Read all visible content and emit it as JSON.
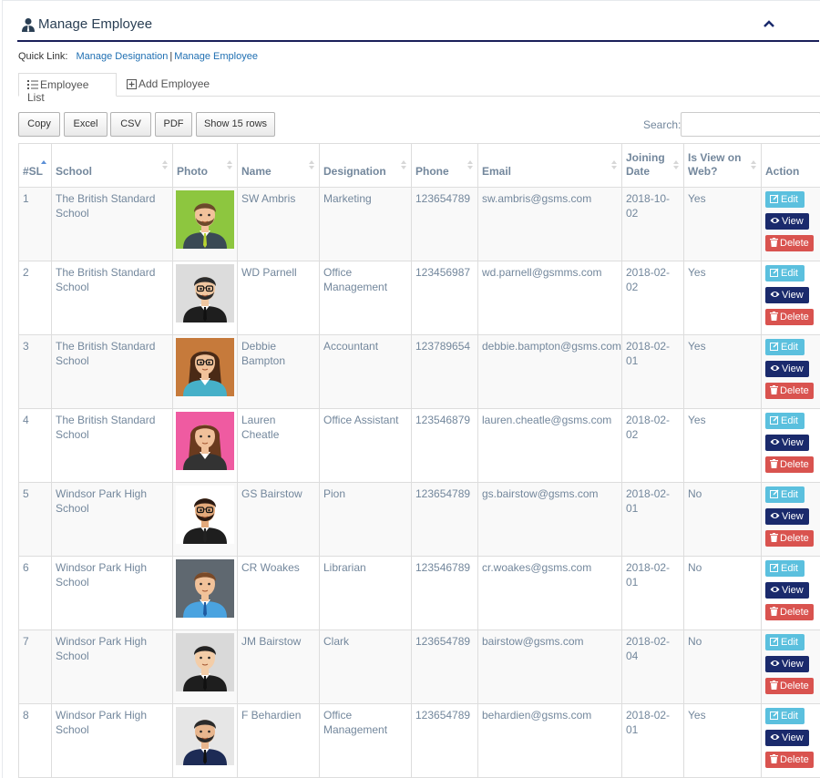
{
  "header": {
    "title": "Manage Employee"
  },
  "quick_links": {
    "label": "Quick Link:",
    "links": [
      "Manage Designation",
      "Manage Employee"
    ],
    "separator": "|"
  },
  "tabs": [
    {
      "label": "Employee List",
      "icon": "list-icon",
      "active": true
    },
    {
      "label": "Add Employee",
      "icon": "plus-square-icon",
      "active": false
    }
  ],
  "export_buttons": [
    "Copy",
    "Excel",
    "CSV",
    "PDF",
    "Show 15 rows"
  ],
  "search": {
    "label": "Search:",
    "value": "",
    "placeholder": ""
  },
  "table": {
    "columns": [
      "#SL",
      "School",
      "Photo",
      "Name",
      "Designation",
      "Phone",
      "Email",
      "Joining Date",
      "Is View on Web?",
      "Action"
    ],
    "rows": [
      {
        "sl": "1",
        "school": "The British Standard School",
        "photo": "avatar-man-beard-green",
        "name": "SW Ambris",
        "designation": "Marketing",
        "phone": "123654789",
        "email": "sw.ambris@gsms.com",
        "joining_date": "2018-10-02",
        "view_on_web": "Yes"
      },
      {
        "sl": "2",
        "school": "The British Standard School",
        "photo": "avatar-man-glasses-grey",
        "name": "WD Parnell",
        "designation": "Office Management",
        "phone": "123456987",
        "email": "wd.parnell@gsmms.com",
        "joining_date": "2018-02-02",
        "view_on_web": "Yes"
      },
      {
        "sl": "3",
        "school": "The British Standard School",
        "photo": "avatar-woman-glasses-brown",
        "name": "Debbie Bampton",
        "designation": "Accountant",
        "phone": "123789654",
        "email": "debbie.bampton@gsms.com",
        "joining_date": "2018-02-01",
        "view_on_web": "Yes"
      },
      {
        "sl": "4",
        "school": "The British Standard School",
        "photo": "avatar-woman-pink",
        "name": "Lauren Cheatle",
        "designation": "Office Assistant",
        "phone": "123546879",
        "email": "lauren.cheatle@gsms.com",
        "joining_date": "2018-02-02",
        "view_on_web": "Yes"
      },
      {
        "sl": "5",
        "school": "Windsor Park High School",
        "photo": "avatar-man-glasses-white",
        "name": "GS Bairstow",
        "designation": "Pion",
        "phone": "123654789",
        "email": "gs.bairstow@gsms.com",
        "joining_date": "2018-02-01",
        "view_on_web": "No"
      },
      {
        "sl": "6",
        "school": "Windsor Park High School",
        "photo": "avatar-man-blue-shirt",
        "name": "CR Woakes",
        "designation": "Librarian",
        "phone": "123546789",
        "email": "cr.woakes@gsms.com",
        "joining_date": "2018-02-01",
        "view_on_web": "No"
      },
      {
        "sl": "7",
        "school": "Windsor Park High School",
        "photo": "avatar-man-suit-grey",
        "name": "JM Bairstow",
        "designation": "Clark",
        "phone": "123654789",
        "email": "bairstow@gsms.com",
        "joining_date": "2018-02-04",
        "view_on_web": "No"
      },
      {
        "sl": "8",
        "school": "Windsor Park High School",
        "photo": "avatar-man-navy-suit",
        "name": "F Behardien",
        "designation": "Office Management",
        "phone": "123654789",
        "email": "behardien@gsms.com",
        "joining_date": "2018-02-01",
        "view_on_web": "Yes"
      }
    ],
    "actions": {
      "edit": "Edit",
      "view": "View",
      "delete": "Delete"
    }
  },
  "colors": {
    "title_bar_rule": "#1a1f5a",
    "link": "#1f6fb2",
    "edit": "#5bc0de",
    "view": "#1a2a6c",
    "delete": "#d9534f"
  }
}
